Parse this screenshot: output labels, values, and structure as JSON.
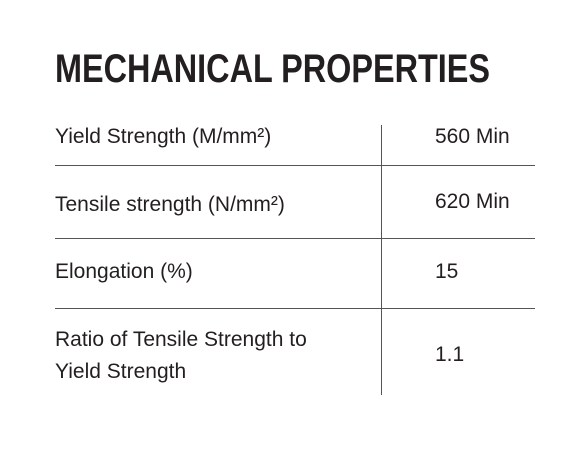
{
  "header": {
    "title": "MECHANICAL PROPERTIES"
  },
  "table": {
    "rows": [
      [
        "Yield Strength (M/mm²)",
        "560 Min"
      ],
      [
        "Tensile strength (N/mm²)",
        "620 Min"
      ],
      [
        "Elongation (%)",
        "15"
      ],
      [
        "Ratio of Tensile Strength to Yield Strength",
        "1.1"
      ]
    ]
  }
}
